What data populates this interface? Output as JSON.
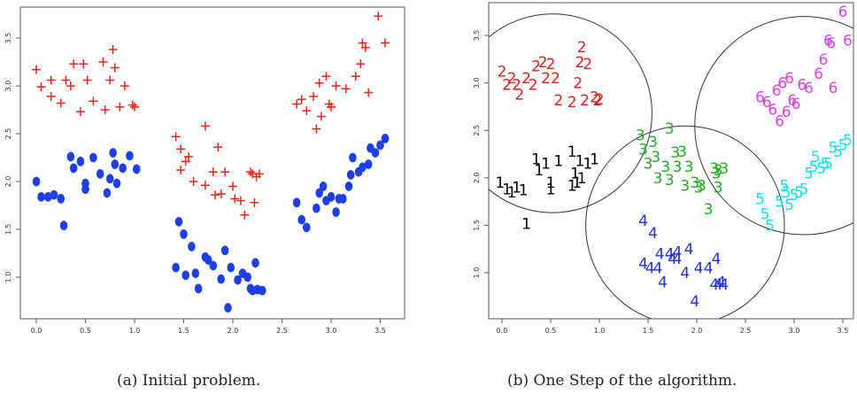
{
  "captions": {
    "a": "(a) Initial problem.",
    "b": "(b) One Step of the algorithm."
  },
  "colors": {
    "plus": "#e8231a",
    "dot": "#1f3fe6",
    "c1": "#000000",
    "c2": "#e01e1e",
    "c3": "#22aa22",
    "c4": "#2233cc",
    "c5": "#11e0e8",
    "c6": "#e040e0",
    "circle": "#333333"
  },
  "chart_data": [
    {
      "type": "scatter",
      "xlim": [
        -0.1,
        3.7
      ],
      "ylim": [
        0.55,
        3.85
      ],
      "xticks": [
        "0.0",
        "0.5",
        "1.0",
        "1.5",
        "2.0",
        "2.5",
        "3.0",
        "3.5"
      ],
      "yticks": [
        "1.0",
        "1.5",
        "2.0",
        "2.5",
        "3.0",
        "3.5"
      ],
      "series": [
        {
          "marker": "plus",
          "points": [
            [
              0.0,
              3.17
            ],
            [
              0.05,
              2.99
            ],
            [
              0.15,
              3.06
            ],
            [
              0.15,
              2.89
            ],
            [
              0.25,
              2.82
            ],
            [
              0.3,
              3.06
            ],
            [
              0.35,
              3.0
            ],
            [
              0.38,
              3.23
            ],
            [
              0.45,
              2.73
            ],
            [
              0.48,
              3.23
            ],
            [
              0.52,
              3.06
            ],
            [
              0.58,
              2.84
            ],
            [
              0.68,
              3.25
            ],
            [
              0.7,
              2.75
            ],
            [
              0.75,
              3.06
            ],
            [
              0.78,
              3.38
            ],
            [
              0.8,
              3.19
            ],
            [
              0.85,
              2.78
            ],
            [
              0.9,
              3.0
            ],
            [
              0.98,
              2.8
            ],
            [
              1.0,
              2.78
            ],
            [
              1.42,
              2.47
            ],
            [
              1.47,
              2.34
            ],
            [
              1.52,
              2.21
            ],
            [
              1.47,
              2.12
            ],
            [
              1.55,
              2.26
            ],
            [
              1.6,
              2.0
            ],
            [
              1.72,
              2.58
            ],
            [
              1.8,
              2.1
            ],
            [
              1.85,
              2.36
            ],
            [
              1.88,
              1.87
            ],
            [
              1.92,
              2.1
            ],
            [
              2.0,
              1.95
            ],
            [
              2.02,
              1.82
            ],
            [
              2.12,
              1.65
            ],
            [
              2.18,
              2.1
            ],
            [
              2.24,
              2.05
            ],
            [
              2.27,
              2.08
            ],
            [
              2.22,
              1.78
            ],
            [
              1.72,
              1.96
            ],
            [
              1.82,
              1.86
            ],
            [
              2.08,
              1.8
            ],
            [
              2.2,
              2.08
            ],
            [
              2.65,
              2.81
            ],
            [
              2.7,
              2.86
            ],
            [
              2.75,
              2.74
            ],
            [
              2.82,
              2.89
            ],
            [
              2.85,
              2.55
            ],
            [
              2.88,
              3.03
            ],
            [
              2.9,
              2.68
            ],
            [
              2.95,
              3.1
            ],
            [
              2.98,
              2.81
            ],
            [
              3.0,
              2.78
            ],
            [
              3.05,
              3.0
            ],
            [
              3.15,
              2.97
            ],
            [
              3.25,
              3.1
            ],
            [
              3.3,
              3.23
            ],
            [
              3.32,
              3.45
            ],
            [
              3.35,
              3.4
            ],
            [
              3.38,
              2.93
            ],
            [
              3.48,
              3.73
            ],
            [
              3.55,
              3.45
            ]
          ]
        },
        {
          "marker": "dot",
          "points": [
            [
              0.0,
              2.0
            ],
            [
              0.05,
              1.84
            ],
            [
              0.12,
              1.84
            ],
            [
              0.18,
              1.86
            ],
            [
              0.25,
              1.82
            ],
            [
              0.28,
              1.54
            ],
            [
              0.35,
              2.26
            ],
            [
              0.38,
              2.14
            ],
            [
              0.45,
              2.21
            ],
            [
              0.5,
              1.92
            ],
            [
              0.5,
              1.98
            ],
            [
              0.58,
              2.25
            ],
            [
              0.65,
              2.08
            ],
            [
              0.72,
              1.88
            ],
            [
              0.75,
              2.03
            ],
            [
              0.78,
              2.3
            ],
            [
              0.8,
              2.18
            ],
            [
              0.82,
              1.98
            ],
            [
              0.88,
              2.14
            ],
            [
              0.95,
              2.27
            ],
            [
              1.02,
              2.13
            ],
            [
              1.42,
              1.1
            ],
            [
              1.45,
              1.58
            ],
            [
              1.5,
              1.45
            ],
            [
              1.52,
              1.02
            ],
            [
              1.58,
              1.32
            ],
            [
              1.62,
              1.04
            ],
            [
              1.65,
              0.88
            ],
            [
              1.72,
              1.21
            ],
            [
              1.75,
              1.18
            ],
            [
              1.8,
              1.12
            ],
            [
              1.88,
              0.98
            ],
            [
              1.92,
              1.28
            ],
            [
              1.95,
              0.68
            ],
            [
              1.98,
              1.1
            ],
            [
              2.05,
              0.97
            ],
            [
              2.1,
              1.04
            ],
            [
              2.15,
              1.0
            ],
            [
              2.18,
              0.88
            ],
            [
              2.2,
              0.86
            ],
            [
              2.25,
              0.87
            ],
            [
              2.3,
              0.86
            ],
            [
              2.23,
              1.15
            ],
            [
              2.65,
              1.78
            ],
            [
              2.7,
              1.6
            ],
            [
              2.75,
              1.52
            ],
            [
              2.85,
              1.72
            ],
            [
              2.88,
              1.88
            ],
            [
              2.92,
              1.95
            ],
            [
              2.95,
              1.8
            ],
            [
              3.0,
              1.84
            ],
            [
              3.05,
              1.68
            ],
            [
              3.08,
              1.82
            ],
            [
              3.12,
              1.82
            ],
            [
              3.18,
              1.95
            ],
            [
              3.2,
              2.07
            ],
            [
              3.22,
              2.25
            ],
            [
              3.28,
              2.1
            ],
            [
              3.32,
              2.15
            ],
            [
              3.38,
              2.18
            ],
            [
              3.4,
              2.35
            ],
            [
              3.45,
              2.3
            ],
            [
              3.5,
              2.38
            ],
            [
              3.55,
              2.45
            ]
          ]
        }
      ]
    },
    {
      "type": "scatter",
      "xlim": [
        -0.1,
        3.7
      ],
      "ylim": [
        0.55,
        3.85
      ],
      "xticks": [
        "0.0",
        "0.5",
        "1.0",
        "1.5",
        "2.0",
        "2.5",
        "3.0",
        "3.5"
      ],
      "yticks": [
        "1.0",
        "1.5",
        "2.0",
        "2.5",
        "3.0",
        "3.5"
      ],
      "circles": [
        {
          "cx": 0.52,
          "cy": 2.68,
          "r": 1.02
        },
        {
          "cx": 1.88,
          "cy": 1.5,
          "r": 1.02
        },
        {
          "cx": 3.1,
          "cy": 2.55,
          "r": 1.12
        }
      ],
      "series": [
        {
          "label": "1",
          "points": [
            [
              -0.02,
              1.95
            ],
            [
              0.05,
              1.88
            ],
            [
              0.1,
              1.85
            ],
            [
              0.15,
              1.9
            ],
            [
              0.22,
              1.87
            ],
            [
              0.25,
              1.52
            ],
            [
              0.35,
              2.2
            ],
            [
              0.38,
              2.08
            ],
            [
              0.45,
              2.15
            ],
            [
              0.5,
              1.95
            ],
            [
              0.5,
              1.88
            ],
            [
              0.58,
              2.18
            ],
            [
              0.72,
              2.28
            ],
            [
              0.75,
              2.05
            ],
            [
              0.8,
              2.18
            ],
            [
              0.82,
              2.0
            ],
            [
              0.72,
              1.92
            ],
            [
              0.77,
              1.95
            ],
            [
              0.88,
              2.15
            ],
            [
              0.95,
              2.2
            ]
          ]
        },
        {
          "label": "2",
          "points": [
            [
              0.0,
              3.12
            ],
            [
              0.05,
              2.98
            ],
            [
              0.1,
              3.05
            ],
            [
              0.15,
              2.98
            ],
            [
              0.18,
              2.88
            ],
            [
              0.25,
              3.05
            ],
            [
              0.32,
              2.98
            ],
            [
              0.35,
              3.18
            ],
            [
              0.42,
              3.22
            ],
            [
              0.45,
              3.05
            ],
            [
              0.5,
              3.2
            ],
            [
              0.55,
              3.05
            ],
            [
              0.58,
              2.82
            ],
            [
              0.72,
              2.8
            ],
            [
              0.78,
              3.0
            ],
            [
              0.8,
              3.22
            ],
            [
              0.82,
              3.38
            ],
            [
              0.85,
              2.82
            ],
            [
              0.95,
              2.85
            ],
            [
              1.0,
              2.83
            ],
            [
              0.88,
              3.2
            ],
            [
              0.98,
              2.82
            ]
          ]
        },
        {
          "label": "3",
          "points": [
            [
              1.42,
              2.45
            ],
            [
              1.45,
              2.3
            ],
            [
              1.5,
              2.15
            ],
            [
              1.55,
              2.38
            ],
            [
              1.58,
              2.22
            ],
            [
              1.6,
              2.0
            ],
            [
              1.72,
              2.52
            ],
            [
              1.8,
              2.12
            ],
            [
              1.78,
              2.27
            ],
            [
              1.88,
              1.92
            ],
            [
              1.92,
              2.12
            ],
            [
              1.98,
              1.95
            ],
            [
              2.02,
              1.9
            ],
            [
              2.12,
              1.67
            ],
            [
              2.18,
              2.1
            ],
            [
              2.22,
              2.08
            ],
            [
              2.28,
              2.1
            ],
            [
              2.22,
              1.9
            ],
            [
              1.72,
              1.98
            ],
            [
              1.85,
              2.28
            ],
            [
              2.05,
              1.92
            ],
            [
              2.2,
              2.05
            ],
            [
              1.68,
              2.12
            ]
          ]
        },
        {
          "label": "4",
          "points": [
            [
              1.45,
              1.55
            ],
            [
              1.55,
              1.42
            ],
            [
              1.45,
              1.1
            ],
            [
              1.52,
              1.05
            ],
            [
              1.6,
              1.05
            ],
            [
              1.65,
              0.9
            ],
            [
              1.72,
              1.2
            ],
            [
              1.75,
              1.15
            ],
            [
              1.8,
              1.15
            ],
            [
              1.88,
              1.0
            ],
            [
              1.92,
              1.25
            ],
            [
              1.98,
              0.7
            ],
            [
              2.02,
              1.05
            ],
            [
              2.12,
              1.05
            ],
            [
              2.2,
              1.15
            ],
            [
              2.18,
              0.88
            ],
            [
              2.22,
              0.88
            ],
            [
              2.28,
              0.88
            ],
            [
              1.62,
              1.2
            ],
            [
              2.25,
              0.9
            ],
            [
              1.8,
              1.22
            ]
          ]
        },
        {
          "label": "5",
          "points": [
            [
              2.65,
              1.78
            ],
            [
              2.7,
              1.62
            ],
            [
              2.75,
              1.5
            ],
            [
              2.85,
              1.75
            ],
            [
              2.9,
              1.92
            ],
            [
              2.92,
              1.85
            ],
            [
              2.95,
              1.72
            ],
            [
              3.0,
              1.82
            ],
            [
              3.05,
              1.85
            ],
            [
              3.1,
              1.88
            ],
            [
              3.15,
              2.05
            ],
            [
              3.2,
              2.12
            ],
            [
              3.22,
              2.22
            ],
            [
              3.28,
              2.1
            ],
            [
              3.32,
              2.15
            ],
            [
              3.35,
              2.15
            ],
            [
              3.4,
              2.32
            ],
            [
              3.45,
              2.28
            ],
            [
              3.5,
              2.35
            ],
            [
              3.55,
              2.4
            ]
          ]
        },
        {
          "label": "6",
          "points": [
            [
              2.65,
              2.85
            ],
            [
              2.72,
              2.8
            ],
            [
              2.78,
              2.72
            ],
            [
              2.82,
              2.92
            ],
            [
              2.85,
              2.6
            ],
            [
              2.88,
              3.0
            ],
            [
              2.92,
              2.7
            ],
            [
              2.95,
              3.05
            ],
            [
              2.98,
              2.82
            ],
            [
              3.02,
              2.78
            ],
            [
              3.08,
              2.98
            ],
            [
              3.15,
              2.95
            ],
            [
              3.25,
              3.1
            ],
            [
              3.3,
              3.25
            ],
            [
              3.35,
              3.45
            ],
            [
              3.38,
              3.42
            ],
            [
              3.4,
              2.95
            ],
            [
              3.5,
              3.75
            ],
            [
              3.55,
              3.45
            ]
          ]
        }
      ]
    }
  ]
}
